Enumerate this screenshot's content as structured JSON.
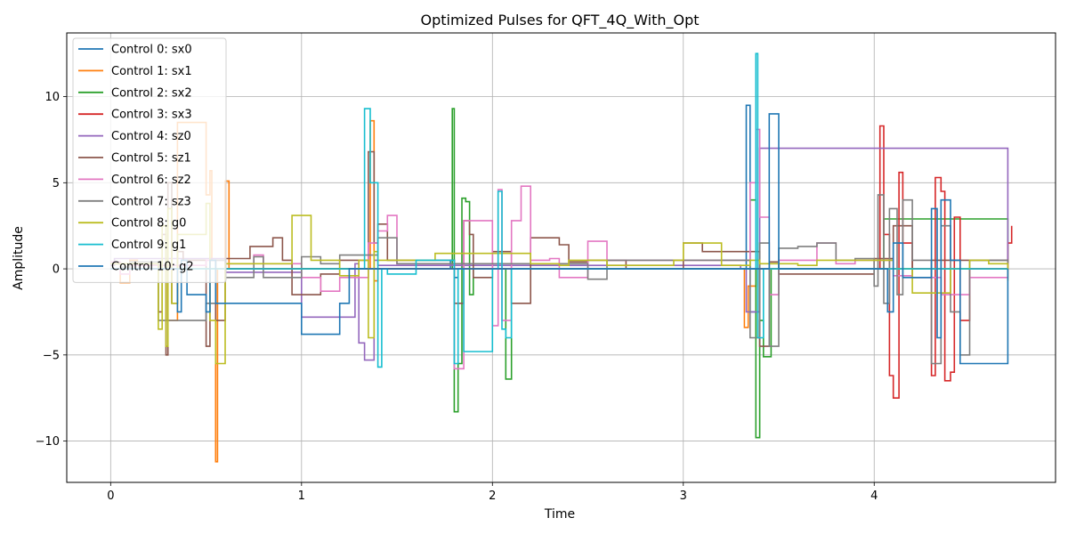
{
  "chart_data": {
    "type": "line",
    "title": "Optimized Pulses for QFT_4Q_With_Opt",
    "xlabel": "Time",
    "ylabel": "Amplitude",
    "xlim": [
      -0.23,
      4.95
    ],
    "ylim": [
      -12.4,
      13.7
    ],
    "xticks": [
      0,
      1,
      2,
      3,
      4
    ],
    "yticks": [
      -10,
      -5,
      0,
      5,
      10
    ],
    "xtick_labels": [
      "0",
      "1",
      "2",
      "3",
      "4"
    ],
    "ytick_labels": [
      "−10",
      "−5",
      "0",
      "5",
      "10"
    ],
    "grid": true,
    "legend_position": "top-left",
    "series": [
      {
        "name": "Control 0: sx0",
        "color": "#1f77b4",
        "x": [
          0,
          1.7,
          1.78,
          1.8,
          1.82,
          3.32,
          3.33,
          3.35,
          3.4,
          4.7
        ],
        "y": [
          0,
          0,
          0.5,
          -0.5,
          0,
          0,
          9.5,
          -2.5,
          0,
          0
        ]
      },
      {
        "name": "Control 1: sx1",
        "color": "#ff7f0e",
        "x": [
          0,
          0.05,
          0.1,
          0.14,
          0.3,
          0.35,
          0.5,
          0.52,
          0.53,
          0.55,
          0.56,
          0.6,
          0.62,
          1.3,
          1.36,
          1.38,
          1.4,
          3.3,
          3.32,
          3.34,
          3.38,
          4.7
        ],
        "y": [
          0.3,
          -0.8,
          0.5,
          0.2,
          -3.0,
          8.5,
          4.3,
          5.7,
          0.5,
          -11.2,
          0,
          5.1,
          0,
          0,
          8.6,
          -0.7,
          0,
          0,
          -3.4,
          -1.0,
          0,
          0
        ]
      },
      {
        "name": "Control 2: sx2",
        "color": "#2ca02c",
        "x": [
          0,
          1.78,
          1.79,
          1.8,
          1.82,
          1.84,
          1.86,
          1.88,
          1.9,
          2.05,
          2.07,
          2.1,
          3.3,
          3.35,
          3.38,
          3.4,
          3.42,
          3.46,
          4.0,
          4.05,
          4.7
        ],
        "y": [
          0,
          0,
          9.3,
          -8.3,
          -5.5,
          4.1,
          3.9,
          -1.5,
          0,
          0,
          -6.4,
          0,
          0,
          4.0,
          -9.8,
          -3.0,
          -5.1,
          0,
          0,
          2.9,
          0
        ]
      },
      {
        "name": "Control 3: sx3",
        "color": "#d62728",
        "x": [
          0,
          3.9,
          4.03,
          4.05,
          4.08,
          4.1,
          4.13,
          4.15,
          4.2,
          4.3,
          4.32,
          4.35,
          4.37,
          4.4,
          4.42,
          4.45,
          4.5,
          4.7,
          4.72
        ],
        "y": [
          0,
          0,
          8.3,
          2.0,
          -6.2,
          -7.5,
          5.6,
          1.5,
          0,
          -6.2,
          5.3,
          4.5,
          -6.5,
          -6.0,
          3.0,
          -3.0,
          0,
          1.5,
          2.5
        ]
      },
      {
        "name": "Control 4: sz0",
        "color": "#9467bd",
        "x": [
          0,
          0.02,
          0.5,
          0.6,
          0.95,
          1.0,
          1.05,
          1.28,
          1.3,
          1.33,
          1.38,
          1.4,
          3.3,
          3.33,
          3.4,
          4.7
        ],
        "y": [
          0.2,
          0.6,
          0.6,
          -0.2,
          -0.2,
          -2.8,
          -2.8,
          0.3,
          -4.3,
          -5.3,
          0.5,
          0.2,
          0,
          -2.5,
          7.0,
          0.2
        ]
      },
      {
        "name": "Control 5: sz1",
        "color": "#8c564b",
        "x": [
          0,
          0.25,
          0.27,
          0.29,
          0.3,
          0.32,
          0.35,
          0.38,
          0.5,
          0.52,
          0.55,
          0.6,
          0.73,
          0.85,
          0.9,
          0.95,
          1.0,
          1.1,
          1.2,
          1.35,
          1.38,
          1.4,
          1.45,
          1.8,
          1.85,
          1.88,
          1.9,
          2.0,
          2.1,
          2.2,
          2.35,
          2.4,
          2.5,
          2.7,
          3.0,
          3.1,
          3.4,
          3.45,
          3.5,
          4.0,
          4.1,
          4.2,
          4.3,
          4.45,
          4.7
        ],
        "y": [
          0.3,
          -2.5,
          2.0,
          -5.0,
          5.0,
          -2.0,
          1.0,
          0.5,
          -4.5,
          0.5,
          -3.0,
          0.6,
          1.3,
          1.8,
          0.5,
          -1.5,
          -1.5,
          -0.3,
          0.5,
          6.8,
          1.5,
          2.6,
          0.5,
          -2.0,
          2.8,
          2.0,
          -0.5,
          1.0,
          -2.0,
          1.8,
          1.4,
          0.4,
          0.5,
          0,
          1.5,
          1.0,
          -4.5,
          0.4,
          -0.3,
          0.6,
          2.5,
          -0.5,
          0.5,
          0.5,
          0.3
        ]
      },
      {
        "name": "Control 6: sz2",
        "color": "#e377c2",
        "x": [
          0,
          0.05,
          0.1,
          0.5,
          0.6,
          0.75,
          0.8,
          1.0,
          1.1,
          1.2,
          1.35,
          1.4,
          1.45,
          1.5,
          1.8,
          1.85,
          2.0,
          2.03,
          2.05,
          2.1,
          2.15,
          2.2,
          2.3,
          2.35,
          2.5,
          2.6,
          3.35,
          3.38,
          3.4,
          3.45,
          3.5,
          3.7,
          3.8,
          3.9,
          4.0,
          4.1,
          4.2,
          4.35,
          4.5,
          4.7
        ],
        "y": [
          0.4,
          -0.3,
          0.2,
          0.5,
          0.3,
          0.8,
          0.3,
          -0.5,
          -1.3,
          -0.5,
          1.5,
          2.2,
          3.1,
          0.3,
          -5.8,
          2.8,
          -3.3,
          4.6,
          -3.0,
          2.8,
          4.8,
          0.5,
          0.6,
          -0.5,
          1.6,
          0.5,
          5.0,
          8.1,
          3.0,
          -1.5,
          0.5,
          1.5,
          0.3,
          0.5,
          0.5,
          -0.4,
          -0.5,
          -1.5,
          -0.5,
          0.5
        ]
      },
      {
        "name": "Control 7: sz3",
        "color": "#7f7f7f",
        "x": [
          0,
          0.05,
          0.1,
          0.25,
          0.5,
          0.55,
          0.6,
          0.75,
          0.8,
          1.0,
          1.1,
          1.2,
          1.4,
          1.5,
          2.5,
          2.6,
          3.2,
          3.35,
          3.4,
          3.45,
          3.5,
          3.6,
          3.7,
          3.8,
          3.9,
          4.0,
          4.02,
          4.05,
          4.08,
          4.12,
          4.15,
          4.2,
          4.3,
          4.35,
          4.4,
          4.45,
          4.5,
          4.6,
          4.7
        ],
        "y": [
          0.3,
          0.1,
          0.4,
          -3.0,
          -2.0,
          0.5,
          -0.5,
          0.7,
          -0.5,
          0.7,
          0.3,
          0.8,
          1.8,
          0.3,
          -0.6,
          0.5,
          0.5,
          -4.0,
          1.5,
          -4.5,
          1.2,
          1.3,
          1.5,
          0.5,
          0.6,
          -1.0,
          4.3,
          -2.0,
          3.5,
          -1.5,
          4.0,
          0.5,
          -5.5,
          2.5,
          -2.5,
          -5.0,
          0.5,
          0.5,
          0.3
        ]
      },
      {
        "name": "Control 8: g0",
        "color": "#bcbd22",
        "x": [
          0,
          0.25,
          0.27,
          0.29,
          0.3,
          0.32,
          0.35,
          0.5,
          0.52,
          0.55,
          0.6,
          0.95,
          1.0,
          1.05,
          1.1,
          1.2,
          1.3,
          1.35,
          1.38,
          1.4,
          1.6,
          1.7,
          2.2,
          2.35,
          2.4,
          2.6,
          2.85,
          2.95,
          3.0,
          3.1,
          3.2,
          3.35,
          3.4,
          3.6,
          3.7,
          4.1,
          4.15,
          4.2,
          4.4,
          4.5,
          4.6,
          4.7
        ],
        "y": [
          0.3,
          -3.5,
          2.5,
          -4.5,
          3.5,
          -2.0,
          2.0,
          3.8,
          -3.0,
          -5.5,
          0.3,
          3.1,
          3.1,
          0.5,
          0.5,
          -0.4,
          0.5,
          -4.0,
          1.0,
          0.5,
          0.5,
          0.9,
          0.3,
          0.2,
          0.5,
          0.2,
          0.2,
          0.5,
          1.5,
          1.5,
          0.2,
          0.5,
          0.3,
          0.2,
          0.5,
          0,
          0,
          -1.4,
          0,
          0.5,
          0.3,
          -0.7
        ]
      },
      {
        "name": "Control 9: g1",
        "color": "#17becf",
        "x": [
          0,
          1.32,
          1.33,
          1.36,
          1.4,
          1.42,
          1.45,
          1.6,
          1.8,
          1.82,
          1.85,
          2.0,
          2.03,
          2.05,
          2.07,
          2.1,
          3.3,
          3.38,
          3.39,
          3.42,
          4.7
        ],
        "y": [
          0,
          0,
          9.3,
          5.0,
          -5.7,
          0,
          -0.3,
          0.5,
          -5.5,
          0,
          -4.8,
          0,
          4.5,
          -3.5,
          -4.0,
          0,
          0,
          12.5,
          -4.0,
          0,
          0
        ]
      },
      {
        "name": "Control 10: g2",
        "color": "#1f77b4",
        "x": [
          0,
          0.35,
          0.37,
          0.4,
          0.5,
          0.52,
          0.55,
          1.0,
          1.1,
          1.2,
          1.25,
          3.3,
          3.45,
          3.5,
          4.0,
          4.07,
          4.1,
          4.15,
          4.3,
          4.33,
          4.35,
          4.4,
          4.45,
          4.7
        ],
        "y": [
          0,
          -2.5,
          0.5,
          -1.5,
          -2.5,
          0.5,
          -2.0,
          -3.8,
          -3.8,
          -2.0,
          0,
          0,
          9.0,
          0,
          0,
          -2.5,
          1.5,
          -0.5,
          3.5,
          -4.0,
          4.0,
          0.5,
          -5.5,
          0
        ]
      }
    ]
  }
}
